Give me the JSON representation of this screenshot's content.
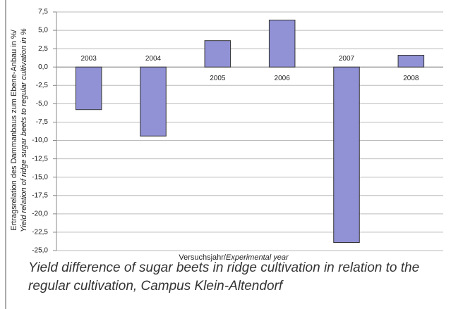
{
  "chart_data": {
    "type": "bar",
    "categories": [
      "2003",
      "2004",
      "2005",
      "2006",
      "2007",
      "2008"
    ],
    "values": [
      -5.8,
      -9.4,
      3.6,
      6.4,
      -23.9,
      1.6
    ],
    "color": "#9191d6",
    "ylim": [
      -25,
      7.5
    ],
    "yticks": [
      {
        "value": -25,
        "label": "-25,0"
      },
      {
        "value": -22.5,
        "label": "-22,5"
      },
      {
        "value": -20,
        "label": "-20,0"
      },
      {
        "value": -17.5,
        "label": "-17,5"
      },
      {
        "value": -15,
        "label": "-15,0"
      },
      {
        "value": -12.5,
        "label": "-12,5"
      },
      {
        "value": -10,
        "label": "-10,0"
      },
      {
        "value": -7.5,
        "label": "-7,5"
      },
      {
        "value": -5,
        "label": "-5,0"
      },
      {
        "value": -2.5,
        "label": "-2,5"
      },
      {
        "value": 0,
        "label": "0,0"
      },
      {
        "value": 2.5,
        "label": "2,5"
      },
      {
        "value": 5,
        "label": "5,0"
      },
      {
        "value": 7.5,
        "label": "7,5"
      }
    ],
    "grid": true,
    "ylabel": [
      "Ertragsrelation des Dammanbaus zum Ebene-Anbau in %/",
      "Yield relation of ridge sugar beets to regular cultivation in %"
    ],
    "xlabel": [
      "Versuchsjahr/",
      "Experimental year"
    ],
    "caption": "Yield difference of sugar beets in ridge cultivation in relation to the regular cultivation, Campus Klein-Altendorf"
  }
}
